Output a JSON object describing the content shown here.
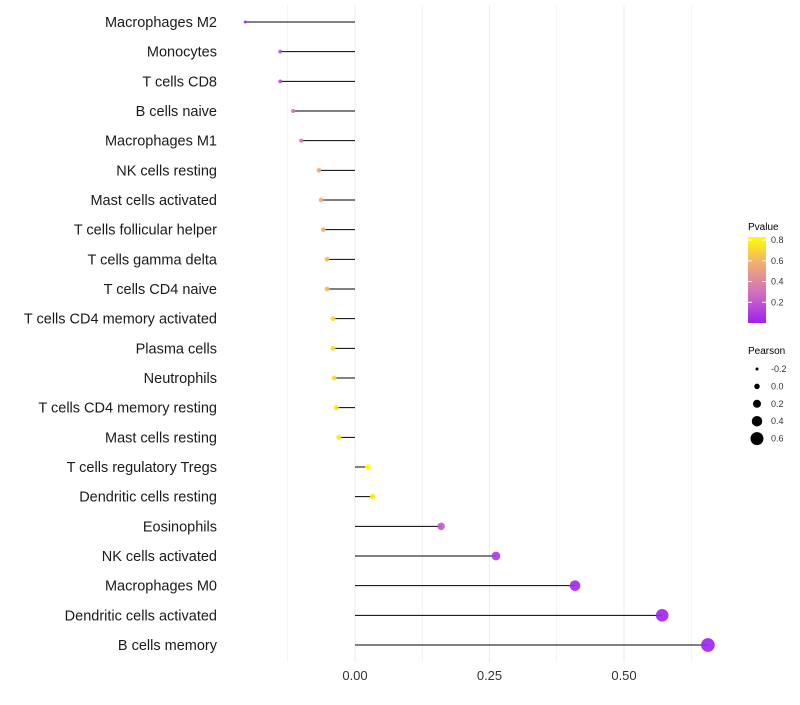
{
  "chart_data": {
    "type": "lollipop",
    "title": "",
    "xlabel": "",
    "ylabel": "",
    "xlim": [
      -0.25,
      0.8
    ],
    "xticks": [
      0.0,
      0.25,
      0.5
    ],
    "xtick_labels": [
      "0.00",
      "0.25",
      "0.50"
    ],
    "grid": true,
    "categories": [
      "Macrophages M2",
      "Monocytes",
      "T cells CD8",
      "B cells naive",
      "Macrophages M1",
      "NK cells resting",
      "Mast cells activated",
      "T cells follicular helper",
      "T cells gamma delta",
      "T cells CD4 naive",
      "T cells CD4 memory activated",
      "Plasma cells",
      "Neutrophils",
      "T cells CD4 memory resting",
      "Mast cells resting",
      "T cells regulatory  Tregs ",
      "Dendritic cells resting",
      "Eosinophils",
      "NK cells activated",
      "Macrophages M0",
      "Dendritic cells activated",
      "B cells memory"
    ],
    "pearson": [
      -0.204,
      -0.139,
      -0.139,
      -0.115,
      -0.1,
      -0.067,
      -0.063,
      -0.059,
      -0.052,
      -0.052,
      -0.041,
      -0.041,
      -0.039,
      -0.035,
      -0.03,
      0.024,
      0.033,
      0.16,
      0.262,
      0.409,
      0.571,
      0.656
    ],
    "pvalue": [
      0.01,
      0.15,
      0.15,
      0.3,
      0.35,
      0.55,
      0.57,
      0.6,
      0.62,
      0.62,
      0.72,
      0.72,
      0.73,
      0.75,
      0.77,
      0.83,
      0.78,
      0.2,
      0.09,
      0.02,
      0.005,
      0.001
    ],
    "legend_color": {
      "title": "Pvalue",
      "ticks": [
        0.2,
        0.4,
        0.6,
        0.8
      ],
      "tick_labels": [
        "0.2",
        "0.4",
        "0.6",
        "0.8"
      ],
      "range": [
        0.0,
        0.83
      ],
      "colors": [
        "#A020F0",
        "#D070C0",
        "#F0B070",
        "#FFFF00"
      ],
      "placement": "right"
    },
    "legend_size": {
      "title": "Pearson",
      "values": [
        -0.2,
        0.0,
        0.2,
        0.4,
        0.6
      ],
      "labels": [
        "-0.2",
        "0.0",
        "0.2",
        "0.4",
        "0.6"
      ],
      "placement": "right"
    }
  }
}
